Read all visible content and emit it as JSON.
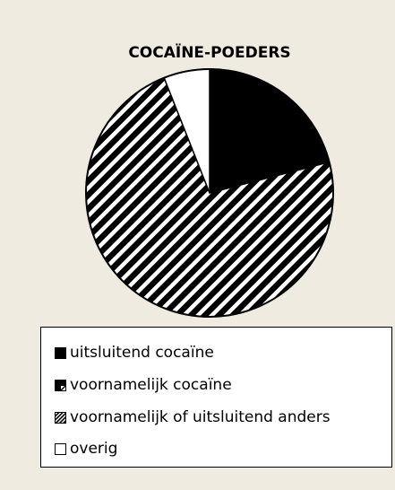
{
  "chart_data": {
    "type": "pie",
    "title": "COCAÏNE-POEDERS",
    "categories": [
      "uitsluitend cocaïne",
      "voornamelijk cocaïne",
      "voornamelijk of uitsluitend anders",
      "overig"
    ],
    "values": [
      21,
      0,
      73,
      6
    ],
    "unit": "%",
    "legend_position": "bottom"
  },
  "legend": {
    "items": [
      {
        "label": "uitsluitend cocaïne",
        "icon": "solid-square-icon"
      },
      {
        "label": "voornamelijk cocaïne",
        "icon": "partially-filled-square-icon"
      },
      {
        "label": "voornamelijk of uitsluitend anders",
        "icon": "hatched-square-icon"
      },
      {
        "label": "overig",
        "icon": "empty-square-icon"
      }
    ]
  }
}
